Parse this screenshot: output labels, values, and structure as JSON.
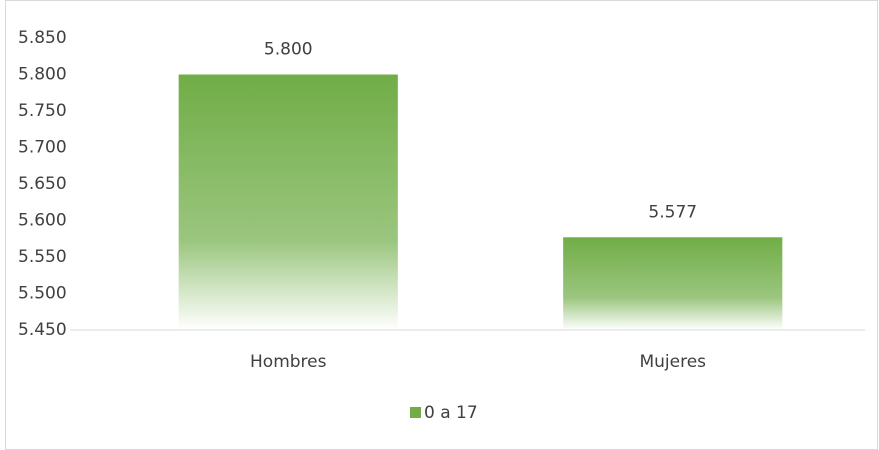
{
  "chart_data": {
    "type": "bar",
    "categories": [
      "Hombres",
      "Mujeres"
    ],
    "series": [
      {
        "name": "0 a 17",
        "color": "#70ad47",
        "values": [
          5800,
          5577
        ],
        "value_labels": [
          "5.800",
          "5.577"
        ]
      }
    ],
    "ylim": [
      5450,
      5850
    ],
    "yticks": [
      {
        "value": 5450,
        "label": "5.450"
      },
      {
        "value": 5500,
        "label": "5.500"
      },
      {
        "value": 5550,
        "label": "5.550"
      },
      {
        "value": 5600,
        "label": "5.600"
      },
      {
        "value": 5650,
        "label": "5.650"
      },
      {
        "value": 5700,
        "label": "5.700"
      },
      {
        "value": 5750,
        "label": "5.750"
      },
      {
        "value": 5800,
        "label": "5.800"
      },
      {
        "value": 5850,
        "label": "5.850"
      }
    ],
    "grid": false,
    "legend": "bottom"
  }
}
